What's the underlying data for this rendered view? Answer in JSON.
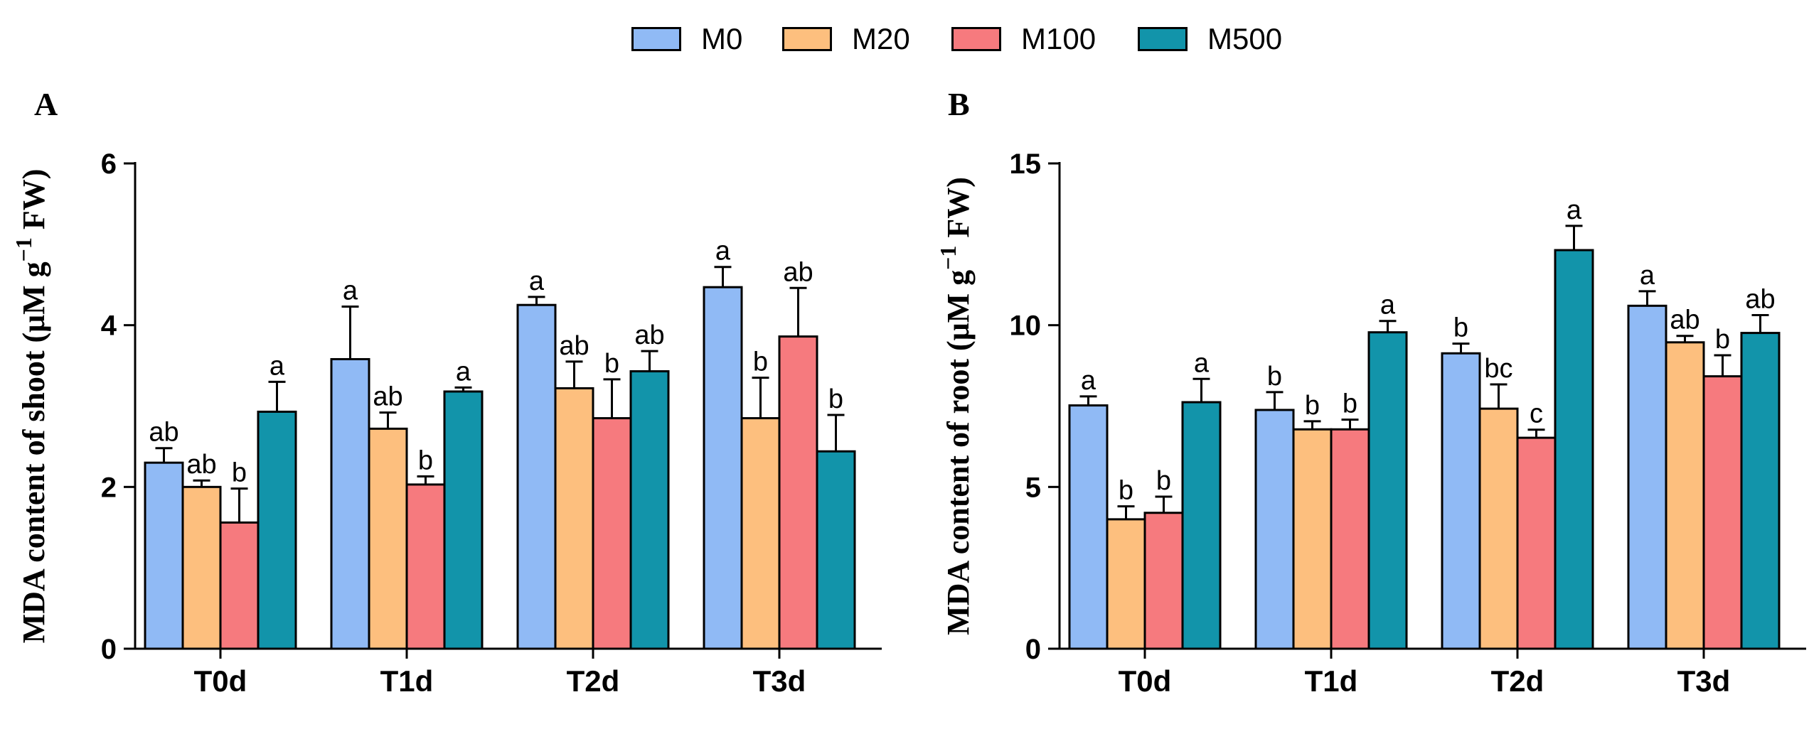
{
  "legend": {
    "items": [
      {
        "name": "M0",
        "color": "#90baf5"
      },
      {
        "name": "M20",
        "color": "#fdbf7e"
      },
      {
        "name": "M100",
        "color": "#f67a7e"
      },
      {
        "name": "M500",
        "color": "#1294aa"
      }
    ]
  },
  "chart_data": [
    {
      "type": "bar",
      "panel": "A",
      "ylabel": "MDA content of shoot (μM g",
      "ylabel_sup": "−1",
      "ylabel_end": " FW)",
      "ylim": [
        0,
        6
      ],
      "yticks": [
        0,
        2,
        4,
        6
      ],
      "categories": [
        "T0d",
        "T1d",
        "T2d",
        "T3d"
      ],
      "series": [
        {
          "name": "M0",
          "color": "#90baf5",
          "values": [
            2.3,
            3.58,
            4.25,
            4.47
          ],
          "errors": [
            0.18,
            0.65,
            0.1,
            0.25
          ],
          "letters": [
            "ab",
            "a",
            "a",
            "a"
          ]
        },
        {
          "name": "M20",
          "color": "#fdbf7e",
          "values": [
            2.0,
            2.72,
            3.22,
            2.85
          ],
          "errors": [
            0.08,
            0.2,
            0.33,
            0.5
          ],
          "letters": [
            "ab",
            "ab",
            "ab",
            "b"
          ]
        },
        {
          "name": "M100",
          "color": "#f67a7e",
          "values": [
            1.56,
            2.03,
            2.85,
            3.86
          ],
          "errors": [
            0.42,
            0.1,
            0.48,
            0.6
          ],
          "letters": [
            "b",
            "b",
            "b",
            "ab"
          ]
        },
        {
          "name": "M500",
          "color": "#1294aa",
          "values": [
            2.93,
            3.18,
            3.43,
            2.44
          ],
          "errors": [
            0.37,
            0.05,
            0.25,
            0.45
          ],
          "letters": [
            "a",
            "a",
            "ab",
            "b"
          ]
        }
      ]
    },
    {
      "type": "bar",
      "panel": "B",
      "ylabel": "MDA content of root (μM g",
      "ylabel_sup": "−1",
      "ylabel_end": " FW)",
      "ylim": [
        0,
        15
      ],
      "yticks": [
        0,
        5,
        10,
        15
      ],
      "categories": [
        "T0d",
        "T1d",
        "T2d",
        "T3d"
      ],
      "series": [
        {
          "name": "M0",
          "color": "#90baf5",
          "values": [
            7.52,
            7.38,
            9.13,
            10.6
          ],
          "errors": [
            0.28,
            0.55,
            0.3,
            0.45
          ],
          "letters": [
            "a",
            "b",
            "b",
            "a"
          ]
        },
        {
          "name": "M20",
          "color": "#fdbf7e",
          "values": [
            4.0,
            6.78,
            7.42,
            9.47
          ],
          "errors": [
            0.4,
            0.25,
            0.75,
            0.2
          ],
          "letters": [
            "b",
            "b",
            "bc",
            "ab"
          ]
        },
        {
          "name": "M100",
          "color": "#f67a7e",
          "values": [
            4.2,
            6.78,
            6.52,
            8.42
          ],
          "errors": [
            0.5,
            0.3,
            0.25,
            0.65
          ],
          "letters": [
            "b",
            "b",
            "c",
            "b"
          ]
        },
        {
          "name": "M500",
          "color": "#1294aa",
          "values": [
            7.62,
            9.78,
            12.32,
            9.76
          ],
          "errors": [
            0.72,
            0.35,
            0.75,
            0.55
          ],
          "letters": [
            "a",
            "a",
            "a",
            "ab"
          ]
        }
      ]
    }
  ]
}
